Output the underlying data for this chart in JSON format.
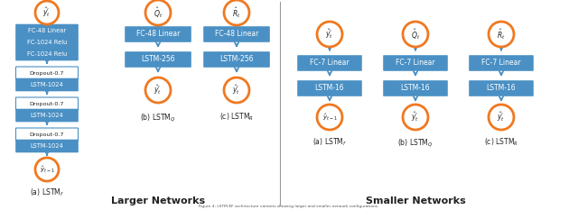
{
  "bg_color": "#ffffff",
  "orange": "#F07820",
  "blue": "#4A90C4",
  "text_white": "#ffffff",
  "text_dark": "#222222",
  "arrow_color": "#4A90C4",
  "divider_color": "#aaaaaa",
  "larger_title": "Larger Networks",
  "smaller_title": "Smaller Networks",
  "col_a_larger_label": "(a) LSTM",
  "col_b_larger_label": "(b) LSTM",
  "col_c_larger_label": "(c) LSTM",
  "col_a_smaller_label": "(a) LSTM",
  "col_b_smaller_label": "(b) LSTM",
  "col_c_smaller_label": "(c) LSTM"
}
